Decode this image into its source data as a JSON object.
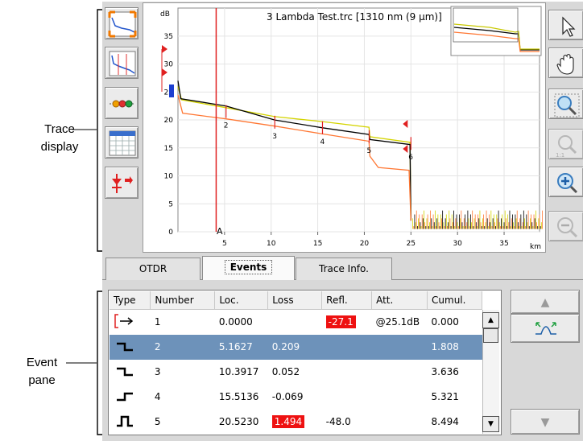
{
  "callouts": {
    "trace_display_line1": "Trace",
    "trace_display_line2": "display",
    "event_pane_line1": "Event",
    "event_pane_line2": "pane"
  },
  "graph": {
    "title": "3 Lambda Test.trc [1310 nm (9 µm)]",
    "y_unit": "dB",
    "x_unit": "km",
    "y_ticks": [
      "0",
      "5",
      "10",
      "15",
      "20",
      "25",
      "30",
      "35"
    ],
    "x_ticks": [
      "5",
      "10",
      "15",
      "20",
      "25",
      "30",
      "35"
    ],
    "marker_label": "A",
    "event_labels": [
      "2",
      "3",
      "4",
      "5",
      "6"
    ],
    "colors": {
      "black": "#000000",
      "yellow": "#d4d400",
      "orange": "#ff7733",
      "marker": "#e02020"
    }
  },
  "left_toolbar": [
    "zoom-fit-icon",
    "trace-graph-icon",
    "event-chain-icon",
    "table-view-icon",
    "splice-event-icon"
  ],
  "right_toolbar": [
    "pointer-icon",
    "hand-pan-icon",
    "zoom-area-icon",
    "zoom-1to1-icon",
    "zoom-in-icon",
    "zoom-out-icon"
  ],
  "tabs": [
    {
      "label": "OTDR",
      "active": false
    },
    {
      "label": "Events",
      "active": true
    },
    {
      "label": "Trace Info.",
      "active": false
    }
  ],
  "events": {
    "columns": [
      "Type",
      "Number",
      "Loc.",
      "Loss",
      "Refl.",
      "Att.",
      "Cumul."
    ],
    "rows": [
      {
        "type_icon": "launch-level-icon",
        "number": "1",
        "loc": "0.0000",
        "loss": "",
        "refl": "-27.1",
        "att": "@25.1dB",
        "cumul": "0.000"
      },
      {
        "type_icon": "non-reflective-loss-icon",
        "number": "2",
        "loc": "5.1627",
        "loss": "0.209",
        "refl": "",
        "att": "",
        "cumul": "1.808"
      },
      {
        "type_icon": "non-reflective-loss-icon",
        "number": "3",
        "loc": "10.3917",
        "loss": "0.052",
        "refl": "",
        "att": "",
        "cumul": "3.636"
      },
      {
        "type_icon": "non-reflective-gain-icon",
        "number": "4",
        "loc": "15.5136",
        "loss": "-0.069",
        "refl": "",
        "att": "",
        "cumul": "5.321"
      },
      {
        "type_icon": "reflective-event-icon",
        "number": "5",
        "loc": "20.5230",
        "loss": "1.494",
        "refl": "-48.0",
        "att": "",
        "cumul": "8.494"
      }
    ],
    "selected_row": 1
  },
  "side_buttons": [
    "scroll-up-icon",
    "event-detail-icon",
    "scroll-down-icon"
  ]
}
